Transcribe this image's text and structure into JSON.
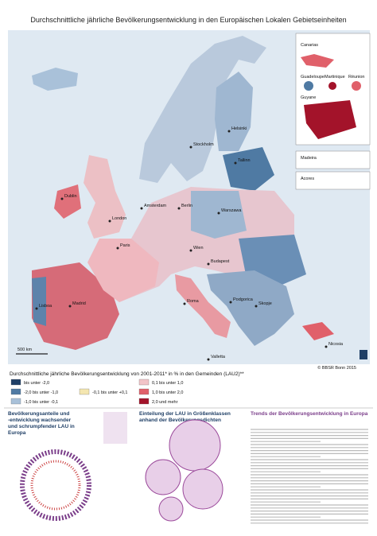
{
  "header": {
    "title": "Durchschnittliche jährliche Bevölkerungsentwicklung in den Europäischen Lokalen Gebietseinheiten"
  },
  "map": {
    "cities": [
      "Helsinki",
      "Stockholm",
      "Tallinn",
      "Dublin",
      "London",
      "Amsterdam",
      "Berlin",
      "Warszawa",
      "Paris",
      "Wien",
      "Budapest",
      "Madrid",
      "Lisboa",
      "Roma",
      "Podgorica",
      "Skopje",
      "Valletta",
      "Nicosia"
    ],
    "insets": [
      "Canarias",
      "Guadeloupe",
      "Martinique",
      "Réunion",
      "Guyane",
      "Madeira",
      "Acores"
    ],
    "scale": "500 km",
    "credit": "© BBSR Bonn 2015"
  },
  "legend": {
    "title": "Durchschnittliche jährliche Bevölkerungsentwicklung von 2001-2011* in % in den Gemeinden (LAU2)**",
    "classes": [
      {
        "label": "bis unter -2,0",
        "color": "#1f3f66"
      },
      {
        "label": "-2,0 bis unter -1,0",
        "color": "#4f7aa3"
      },
      {
        "label": "-1,0 bis unter -0,1",
        "color": "#a9c1d9"
      },
      {
        "label": "-0,1 bis unter +0,1",
        "color": "#f4e6b0"
      },
      {
        "label": "0,1 bis unter 1,0",
        "color": "#f2c4c8"
      },
      {
        "label": "1,0 bis unter 2,0",
        "color": "#e0606a"
      },
      {
        "label": "2,0 und mehr",
        "color": "#a3132a"
      }
    ]
  },
  "sections": [
    {
      "title": "Bevölkerungsanteile und -entwicklung wachsender und schrumpfender LAU in Europa"
    },
    {
      "title": "Einteilung der LAU in Größenklassen anhand der Bevölkerungsdichten"
    },
    {
      "title": "Trends der Bevölkerungsentwicklung in Europa"
    }
  ]
}
